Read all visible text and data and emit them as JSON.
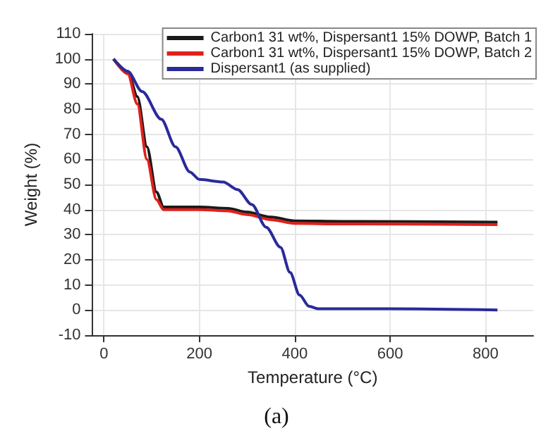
{
  "chart_data": {
    "type": "line",
    "xlabel": "Temperature (°C)",
    "ylabel": "Weight (%)",
    "annotations": [
      "(a)"
    ],
    "xlim": [
      -25,
      900
    ],
    "xticks": [
      0,
      200,
      400,
      600,
      800
    ],
    "ylim": [
      -10,
      110
    ],
    "yticks": [
      -10,
      0,
      10,
      20,
      30,
      40,
      50,
      60,
      70,
      80,
      90,
      100,
      110
    ],
    "grid": true,
    "legend": "top right",
    "marker": "none",
    "line_style": "solid",
    "series": [
      {
        "name": "Carbon1 31 wt%, Dispersant1 15% DOWP, Batch 1",
        "color": "#1a1a1a",
        "x": [
          20,
          50,
          70,
          90,
          110,
          125,
          200,
          260,
          300,
          350,
          400,
          500,
          825
        ],
        "values": [
          100,
          95,
          85,
          65,
          47,
          41,
          41,
          40.5,
          39,
          37,
          35.5,
          35.3,
          35
        ]
      },
      {
        "name": "Carbon1 31 wt%, Dispersant1 15% DOWP, Batch 2",
        "color": "#e0201b",
        "x": [
          20,
          50,
          70,
          90,
          110,
          125,
          200,
          260,
          300,
          350,
          400,
          500,
          825
        ],
        "values": [
          100,
          94,
          82,
          60,
          44,
          40,
          40,
          39.5,
          38,
          36,
          34.5,
          34.3,
          34
        ]
      },
      {
        "name": "Dispersant1 (as supplied)",
        "color": "#2a2a9a",
        "x": [
          20,
          50,
          80,
          120,
          150,
          180,
          200,
          250,
          280,
          310,
          340,
          370,
          390,
          410,
          430,
          450,
          600,
          825
        ],
        "values": [
          100,
          95,
          87,
          76,
          65,
          55,
          52,
          51,
          48,
          42,
          33,
          25,
          15,
          6,
          1.5,
          0.5,
          0.5,
          0
        ]
      }
    ]
  }
}
